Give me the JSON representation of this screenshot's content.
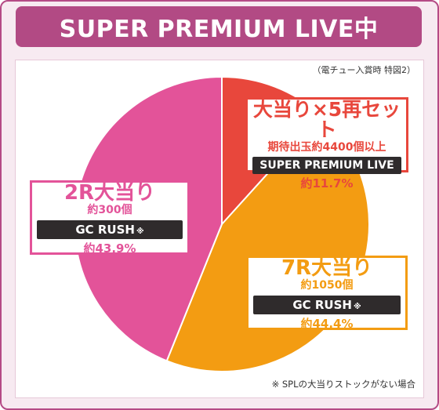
{
  "title": "SUPER PREMIUM LIVE中",
  "note_top": "（電チュー入賞時 特図2）",
  "note_bottom": "※ SPLの大当りストックがない場合",
  "colors": {
    "frame_border": "#b54b86",
    "title_bg": "#b24a84",
    "super": "#e8473c",
    "r7": "#f39c12",
    "r2": "#e35399"
  },
  "labels": {
    "super": {
      "title": "大当り×5再セット",
      "sub": "期待出玉約4400個以上",
      "bar": "SUPER PREMIUM LIVE",
      "pct": "約11.7%"
    },
    "r7": {
      "title": "7R大当り",
      "sub": "約1050個",
      "bar": "GC RUSH",
      "mark": "※",
      "pct": "約44.4%"
    },
    "r2": {
      "title": "2R大当り",
      "sub": "約300個",
      "bar": "GC RUSH",
      "mark": "※",
      "pct": "約43.9%"
    }
  },
  "chart_data": {
    "type": "pie",
    "start": "12 o'clock",
    "direction": "clockwise",
    "slices": [
      {
        "label": "大当り×5再セット",
        "value": 11.7,
        "color": "#e8473c"
      },
      {
        "label": "7R大当り",
        "value": 44.4,
        "color": "#f39c12"
      },
      {
        "label": "2R大当り",
        "value": 43.9,
        "color": "#e35399"
      }
    ]
  }
}
